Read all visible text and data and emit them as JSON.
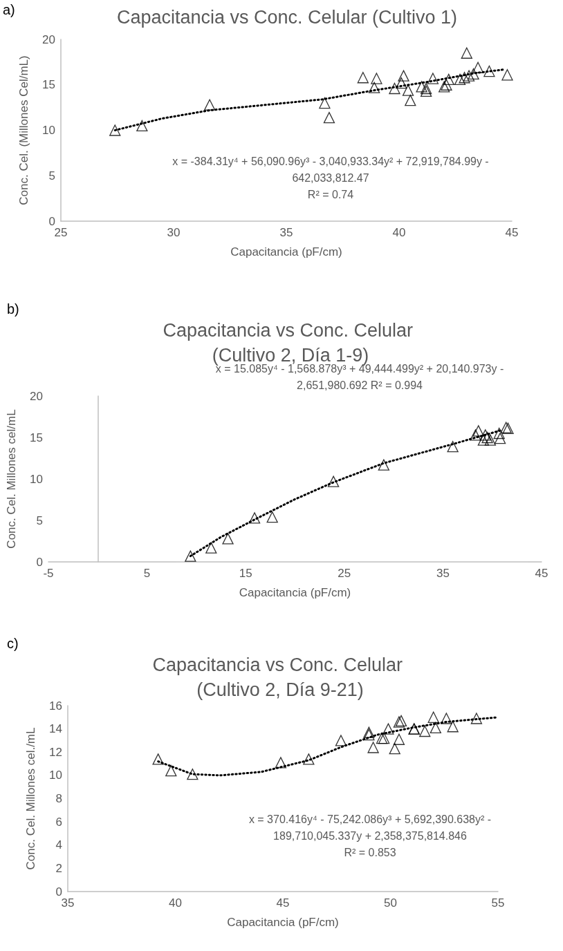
{
  "chart_data": [
    {
      "type": "scatter",
      "title": "Capacitancia vs Conc. Celular (Cultivo 1)",
      "xlabel": "Capacitancia (pF/cm)",
      "ylabel": "Conc. Cel. (Millones Cel/mL)",
      "annotations": [
        "a)",
        "x = -384.31y⁴ + 56,090.96y³ - 3,040,933.34y² + 72,919,784.99y -",
        "642,033,812.47",
        "R² = 0.74"
      ],
      "xlim": [
        25,
        45
      ],
      "xticks": [
        25,
        30,
        35,
        40,
        45
      ],
      "ylim": [
        0,
        20
      ],
      "yticks": [
        0,
        5,
        10,
        15,
        20
      ],
      "grid": false,
      "line_style": "dotted",
      "series": [
        {
          "marker": "triangle",
          "color": "#000000",
          "x": [
            27.4,
            28.6,
            31.6,
            36.7,
            36.9,
            38.4,
            38.9,
            39.0,
            39.8,
            40.1,
            40.2,
            40.4,
            40.5,
            41.0,
            41.2,
            41.2,
            41.5,
            42.0,
            42.1,
            42.2,
            42.7,
            42.9,
            43.0,
            43.1,
            43.3,
            43.5,
            44.0,
            44.8
          ],
          "values": [
            10.0,
            10.5,
            12.8,
            13.0,
            11.4,
            15.8,
            14.7,
            15.7,
            14.6,
            15.2,
            16.0,
            14.4,
            13.3,
            14.8,
            14.3,
            14.6,
            15.7,
            14.8,
            15.0,
            15.6,
            15.6,
            15.8,
            18.5,
            16.0,
            16.2,
            16.9,
            16.5,
            16.1
          ]
        },
        {
          "type": "line",
          "marker": "none",
          "color": "#000000",
          "x": [
            27.4,
            29.5,
            31.6,
            34.1,
            36.6,
            38.9,
            41.2,
            43.4,
            44.7
          ],
          "values": [
            10.0,
            11.3,
            12.2,
            12.8,
            13.4,
            14.4,
            15.3,
            16.3,
            16.7
          ]
        }
      ]
    },
    {
      "type": "scatter",
      "title": "Capacitancia vs Conc. Celular (Cultivo 2, Día 1-9)",
      "xlabel": "Capacitancia (pF/cm)",
      "ylabel": "Conc. Cel. Millones cel/mL",
      "annotations": [
        "b)",
        "x = 15.085y⁴ - 1,568.878y³ + 49,444.499y² + 20,140.973y -",
        "2,651,980.692 R² = 0.994"
      ],
      "xlim": [
        -5,
        45
      ],
      "xticks": [
        -5,
        5,
        15,
        25,
        35,
        45
      ],
      "ylim": [
        0,
        20
      ],
      "yticks": [
        0,
        5,
        10,
        15,
        20
      ],
      "grid": false,
      "line_style": "dotted",
      "series": [
        {
          "marker": "triangle",
          "color": "#000000",
          "x": [
            9.4,
            11.5,
            13.2,
            15.9,
            17.7,
            23.9,
            29.0,
            36.0,
            38.3,
            38.6,
            39.1,
            39.3,
            39.5,
            39.8,
            40.7,
            40.8,
            41.4,
            41.6
          ],
          "values": [
            0.7,
            1.7,
            2.8,
            5.3,
            5.4,
            9.7,
            11.7,
            13.9,
            15.3,
            15.8,
            14.7,
            15.3,
            15.0,
            14.7,
            15.5,
            14.9,
            16.2,
            16.1
          ]
        },
        {
          "type": "line",
          "marker": "none",
          "color": "#000000",
          "x": [
            9.4,
            12.5,
            15.9,
            19.9,
            23.9,
            29.0,
            36.0,
            41.0
          ],
          "values": [
            0.7,
            3.0,
            5.1,
            7.5,
            9.6,
            11.9,
            14.2,
            15.9
          ]
        }
      ]
    },
    {
      "type": "scatter",
      "title": "Capacitancia vs Conc. Celular (Cultivo 2, Día 9-21)",
      "xlabel": "Capacitancia (pF/cm)",
      "ylabel": "Conc. Cel. Millones cel./mL",
      "annotations": [
        "c)",
        "x = 370.416y⁴ - 75,242.086y³ + 5,692,390.638y² -",
        "189,710,045.337y + 2,358,375,814.846",
        "R² = 0.853"
      ],
      "xlim": [
        35,
        55
      ],
      "xticks": [
        35,
        40,
        45,
        50,
        55
      ],
      "ylim": [
        0,
        16
      ],
      "yticks": [
        0,
        2,
        4,
        6,
        8,
        10,
        12,
        14,
        16
      ],
      "grid": false,
      "line_style": "dotted",
      "series": [
        {
          "marker": "triangle",
          "color": "#000000",
          "x": [
            39.2,
            39.8,
            40.8,
            44.9,
            46.2,
            47.7,
            49.0,
            49.0,
            49.2,
            49.6,
            49.7,
            49.9,
            50.2,
            50.4,
            50.4,
            50.5,
            51.1,
            51.1,
            51.6,
            52.0,
            52.1,
            52.6,
            52.9,
            54.0
          ],
          "values": [
            11.4,
            10.4,
            10.1,
            11.1,
            11.4,
            13.0,
            13.7,
            13.5,
            12.4,
            13.2,
            13.2,
            14.0,
            12.3,
            14.6,
            13.1,
            14.7,
            14.0,
            14.0,
            13.8,
            15.0,
            14.1,
            14.9,
            14.2,
            14.9
          ]
        },
        {
          "type": "line",
          "marker": "none",
          "color": "#000000",
          "x": [
            39.2,
            40.8,
            42.1,
            44.0,
            46.2,
            47.8,
            49.4,
            51.0,
            52.6,
            55.0
          ],
          "values": [
            11.2,
            10.1,
            10.0,
            10.3,
            11.3,
            12.5,
            13.5,
            14.1,
            14.6,
            15.0
          ]
        }
      ]
    }
  ]
}
